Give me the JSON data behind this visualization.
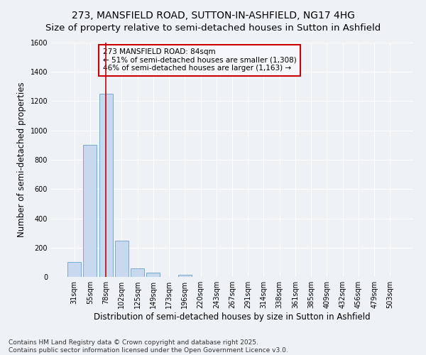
{
  "title": "273, MANSFIELD ROAD, SUTTON-IN-ASHFIELD, NG17 4HG",
  "subtitle": "Size of property relative to semi-detached houses in Sutton in Ashfield",
  "xlabel": "Distribution of semi-detached houses by size in Sutton in Ashfield",
  "ylabel": "Number of semi-detached properties",
  "categories": [
    "31sqm",
    "55sqm",
    "78sqm",
    "102sqm",
    "125sqm",
    "149sqm",
    "173sqm",
    "196sqm",
    "220sqm",
    "243sqm",
    "267sqm",
    "291sqm",
    "314sqm",
    "338sqm",
    "361sqm",
    "385sqm",
    "409sqm",
    "432sqm",
    "456sqm",
    "479sqm",
    "503sqm"
  ],
  "values": [
    100,
    900,
    1250,
    245,
    60,
    30,
    0,
    15,
    0,
    0,
    0,
    0,
    0,
    0,
    0,
    0,
    0,
    0,
    0,
    0,
    0
  ],
  "bar_color": "#c8d8ef",
  "bar_edge_color": "#7aaacf",
  "highlight_bar_index": 2,
  "highlight_line_color": "#cc0000",
  "annotation_text": "273 MANSFIELD ROAD: 84sqm\n← 51% of semi-detached houses are smaller (1,308)\n46% of semi-detached houses are larger (1,163) →",
  "annotation_box_facecolor": "#f5f7fa",
  "annotation_box_edgecolor": "#cc0000",
  "ylim": [
    0,
    1600
  ],
  "yticks": [
    0,
    200,
    400,
    600,
    800,
    1000,
    1200,
    1400,
    1600
  ],
  "footnote": "Contains HM Land Registry data © Crown copyright and database right 2025.\nContains public sector information licensed under the Open Government Licence v3.0.",
  "bg_color": "#eef2f7",
  "grid_color": "#ffffff",
  "title_fontsize": 10,
  "axis_label_fontsize": 8.5,
  "tick_fontsize": 7,
  "annotation_fontsize": 7.5,
  "footnote_fontsize": 6.5
}
